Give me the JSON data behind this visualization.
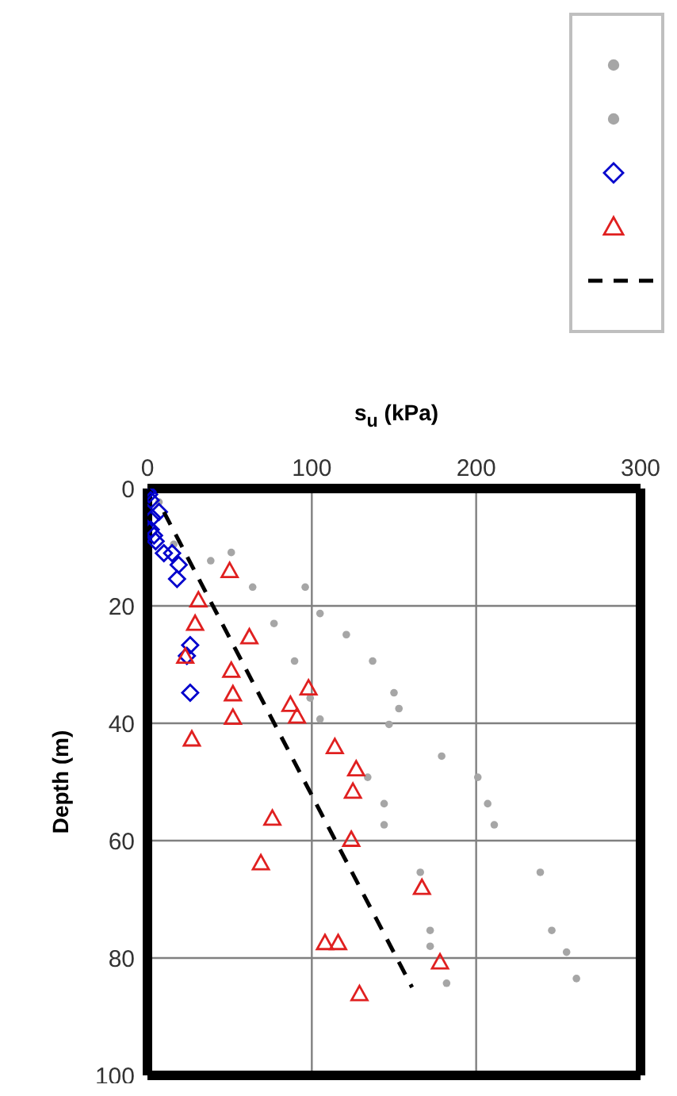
{
  "chart_data": {
    "type": "scatter",
    "xlabel": "s$_{u}$ (kPa)",
    "ylabel": "Depth (m)",
    "xlim": [
      0,
      300
    ],
    "xticks": [
      0,
      100,
      200,
      300
    ],
    "ylim": [
      100,
      0
    ],
    "yticks": [
      0,
      20,
      40,
      60,
      80,
      100
    ],
    "grid": true,
    "series": [
      {
        "color": "#a6a6a6",
        "marker": "circle",
        "x": [
          7,
          16,
          38.5,
          64,
          77,
          89.5,
          99,
          105,
          134,
          144,
          144,
          166,
          172,
          172,
          182
        ],
        "values": [
          2.3,
          9.5,
          12.3,
          16.8,
          23,
          29.4,
          35.7,
          39.3,
          49.2,
          53.7,
          57.3,
          65.4,
          75.3,
          78,
          84.3
        ]
      },
      {
        "color": "#a6a6a6",
        "marker": "circle",
        "x": [
          51,
          96,
          105,
          121,
          137,
          150,
          153,
          147,
          179,
          201,
          207,
          211,
          239,
          246,
          255,
          261
        ],
        "values": [
          10.9,
          16.8,
          21.3,
          24.9,
          29.4,
          34.8,
          37.5,
          40.2,
          45.6,
          49.2,
          53.7,
          57.3,
          65.4,
          75.3,
          79,
          83.5
        ]
      },
      {
        "color": "#0000cc",
        "marker": "diamond",
        "x": [
          0,
          1,
          2,
          3,
          2,
          4,
          5,
          7,
          10,
          15,
          19,
          18,
          26,
          24,
          26
        ],
        "values": [
          0.5,
          1,
          2,
          5,
          7,
          8,
          9,
          4,
          11,
          11,
          13,
          15.4,
          26.7,
          28.5,
          34.8
        ]
      },
      {
        "color": "#e02020",
        "marker": "triangle",
        "x": [
          50,
          31,
          29,
          62,
          23,
          51,
          52,
          98,
          87,
          91,
          52,
          27,
          114,
          127,
          125,
          76,
          124,
          69,
          167,
          108,
          116,
          178,
          129
        ],
        "values": [
          14,
          19,
          23,
          25.3,
          28.6,
          31,
          35,
          34,
          36.8,
          38.8,
          39,
          42.7,
          44,
          47.8,
          51.6,
          56.2,
          59.8,
          63.8,
          68,
          77.4,
          77.4,
          80.7,
          86.1
        ]
      },
      {
        "type": "line",
        "color": "#000000",
        "line_style": "dashed",
        "marker": "none",
        "x": [
          10,
          161
        ],
        "values": [
          4,
          85
        ]
      }
    ]
  }
}
